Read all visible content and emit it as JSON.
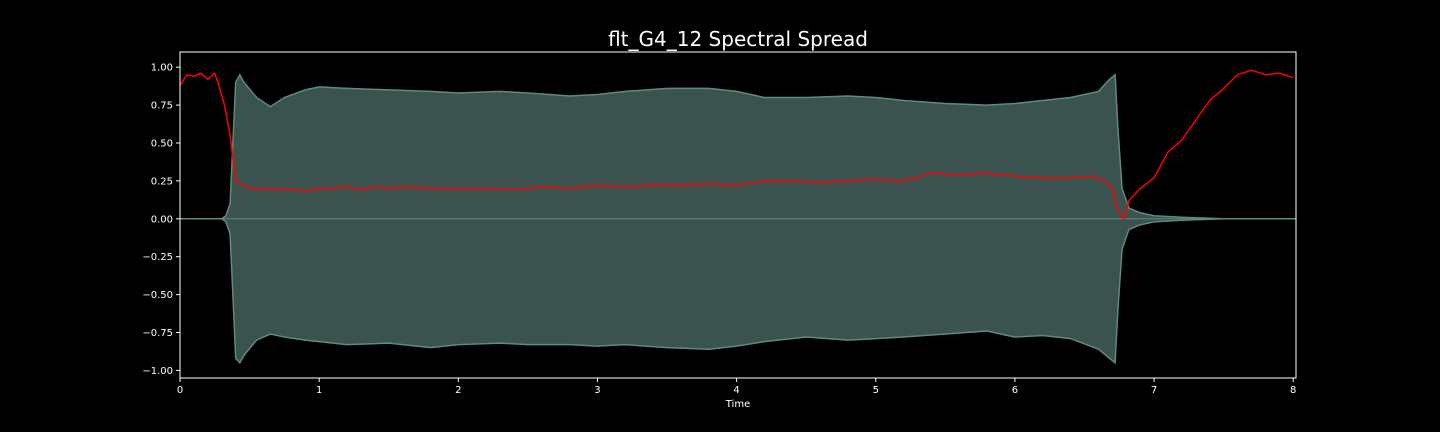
{
  "chart_data": {
    "type": "line",
    "title": "flt_G4_12 Spectral Spread",
    "xlabel": "Time",
    "ylabel": "",
    "xlim": [
      0,
      8.02
    ],
    "ylim": [
      -1.05,
      1.1
    ],
    "x_ticks": [
      0,
      1,
      2,
      3,
      4,
      5,
      6,
      7,
      8
    ],
    "x_tick_labels": [
      "0",
      "1",
      "2",
      "3",
      "4",
      "5",
      "6",
      "7",
      "8"
    ],
    "y_ticks": [
      1.0,
      0.75,
      0.5,
      0.25,
      0.0,
      -0.25,
      -0.5,
      -0.75,
      -1.0
    ],
    "y_tick_labels": [
      "1.00",
      "0.75",
      "0.50",
      "0.25",
      "0.00",
      "−0.25",
      "−0.50",
      "−0.75",
      "−1.00"
    ],
    "grid": false,
    "background_color": "#000000",
    "axes_color": "#ffffff",
    "waveform": {
      "color": "#3a534e",
      "edge_color": "#5e8a80",
      "x": [
        0,
        0.3,
        0.33,
        0.36,
        0.38,
        0.4,
        0.43,
        0.46,
        0.55,
        0.65,
        0.75,
        0.9,
        1.0,
        1.2,
        1.5,
        1.8,
        2.0,
        2.3,
        2.5,
        2.8,
        3.0,
        3.2,
        3.5,
        3.8,
        4.0,
        4.2,
        4.5,
        4.8,
        5.0,
        5.2,
        5.5,
        5.8,
        6.0,
        6.2,
        6.4,
        6.6,
        6.68,
        6.72,
        6.74,
        6.77,
        6.82,
        6.9,
        7.0,
        7.2,
        7.5,
        7.8,
        8.02
      ],
      "upper": [
        0,
        0,
        0.02,
        0.1,
        0.5,
        0.9,
        0.95,
        0.9,
        0.8,
        0.74,
        0.8,
        0.85,
        0.87,
        0.86,
        0.85,
        0.84,
        0.83,
        0.84,
        0.83,
        0.81,
        0.82,
        0.84,
        0.86,
        0.86,
        0.84,
        0.8,
        0.8,
        0.81,
        0.8,
        0.78,
        0.76,
        0.75,
        0.76,
        0.78,
        0.8,
        0.84,
        0.92,
        0.95,
        0.6,
        0.2,
        0.07,
        0.04,
        0.02,
        0.01,
        0,
        0,
        0
      ],
      "lower": [
        0,
        0,
        -0.02,
        -0.1,
        -0.5,
        -0.92,
        -0.95,
        -0.9,
        -0.8,
        -0.76,
        -0.78,
        -0.8,
        -0.81,
        -0.83,
        -0.82,
        -0.85,
        -0.83,
        -0.82,
        -0.83,
        -0.83,
        -0.84,
        -0.83,
        -0.85,
        -0.86,
        -0.84,
        -0.81,
        -0.78,
        -0.8,
        -0.79,
        -0.78,
        -0.76,
        -0.74,
        -0.78,
        -0.77,
        -0.79,
        -0.86,
        -0.92,
        -0.95,
        -0.6,
        -0.2,
        -0.07,
        -0.04,
        -0.02,
        -0.01,
        0,
        0,
        0
      ]
    },
    "series": [
      {
        "color": "#ff0000",
        "x": [
          0,
          0.05,
          0.1,
          0.15,
          0.2,
          0.25,
          0.28,
          0.32,
          0.36,
          0.4,
          0.5,
          0.6,
          0.7,
          0.8,
          0.9,
          1.0,
          1.1,
          1.2,
          1.3,
          1.4,
          1.5,
          1.6,
          1.8,
          2.0,
          2.2,
          2.4,
          2.6,
          2.8,
          3.0,
          3.2,
          3.4,
          3.6,
          3.8,
          4.0,
          4.2,
          4.4,
          4.6,
          4.8,
          5.0,
          5.2,
          5.4,
          5.6,
          5.8,
          6.0,
          6.2,
          6.4,
          6.55,
          6.65,
          6.7,
          6.74,
          6.78,
          6.82,
          6.9,
          7.0,
          7.1,
          7.2,
          7.3,
          7.4,
          7.5,
          7.6,
          7.7,
          7.8,
          7.9,
          8.0
        ],
        "y": [
          0.88,
          0.95,
          0.94,
          0.96,
          0.92,
          0.96,
          0.88,
          0.75,
          0.55,
          0.25,
          0.2,
          0.2,
          0.19,
          0.2,
          0.18,
          0.2,
          0.2,
          0.21,
          0.19,
          0.21,
          0.2,
          0.21,
          0.2,
          0.2,
          0.2,
          0.19,
          0.21,
          0.2,
          0.22,
          0.21,
          0.22,
          0.22,
          0.23,
          0.22,
          0.25,
          0.25,
          0.24,
          0.25,
          0.26,
          0.25,
          0.3,
          0.29,
          0.3,
          0.28,
          0.27,
          0.27,
          0.28,
          0.25,
          0.2,
          0.05,
          0.0,
          0.12,
          0.2,
          0.27,
          0.44,
          0.52,
          0.65,
          0.78,
          0.86,
          0.95,
          0.98,
          0.95,
          0.96,
          0.93
        ]
      }
    ]
  }
}
